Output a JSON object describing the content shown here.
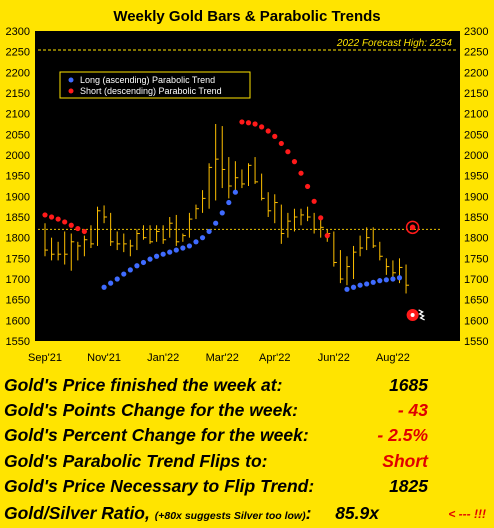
{
  "chart_data": {
    "type": "ohlc_bars_with_parabolic_trend",
    "title": "Weekly Gold Bars & Parabolic Trends",
    "ylim": [
      1550,
      2300
    ],
    "yticks": [
      1550,
      1600,
      1650,
      1700,
      1750,
      1800,
      1850,
      1900,
      1950,
      2000,
      2050,
      2100,
      2150,
      2200,
      2250,
      2300
    ],
    "xtick_labels": [
      "Sep'21",
      "Nov'21",
      "Jan'22",
      "Mar'22",
      "Apr'22",
      "Jun'22",
      "Aug'22"
    ],
    "xtick_weeks": [
      0,
      9,
      18,
      27,
      35,
      44,
      53
    ],
    "week_count": 62,
    "forecast_line": {
      "label": "2022 Forecast High: 2254",
      "value": 2254
    },
    "current_price_line": 1820,
    "legend": [
      {
        "name": "Long (ascending) Parabolic Trend",
        "color": "#3F6BFF"
      },
      {
        "name": "Short (descending) Parabolic Trend",
        "color": "#FF1A1A"
      }
    ],
    "bars": [
      {
        "w": 0,
        "h": 1835,
        "l": 1755,
        "c": 1770
      },
      {
        "w": 1,
        "h": 1800,
        "l": 1745,
        "c": 1760
      },
      {
        "w": 2,
        "h": 1790,
        "l": 1745,
        "c": 1760
      },
      {
        "w": 3,
        "h": 1815,
        "l": 1735,
        "c": 1760
      },
      {
        "w": 4,
        "h": 1810,
        "l": 1720,
        "c": 1790
      },
      {
        "w": 5,
        "h": 1790,
        "l": 1745,
        "c": 1780
      },
      {
        "w": 6,
        "h": 1805,
        "l": 1755,
        "c": 1795
      },
      {
        "w": 7,
        "h": 1830,
        "l": 1775,
        "c": 1785
      },
      {
        "w": 8,
        "h": 1875,
        "l": 1780,
        "c": 1865
      },
      {
        "w": 9,
        "h": 1878,
        "l": 1835,
        "c": 1850
      },
      {
        "w": 10,
        "h": 1860,
        "l": 1780,
        "c": 1790
      },
      {
        "w": 11,
        "h": 1815,
        "l": 1770,
        "c": 1785
      },
      {
        "w": 12,
        "h": 1810,
        "l": 1765,
        "c": 1785
      },
      {
        "w": 13,
        "h": 1795,
        "l": 1755,
        "c": 1780
      },
      {
        "w": 14,
        "h": 1820,
        "l": 1770,
        "c": 1810
      },
      {
        "w": 15,
        "h": 1830,
        "l": 1795,
        "c": 1800
      },
      {
        "w": 16,
        "h": 1830,
        "l": 1785,
        "c": 1790
      },
      {
        "w": 17,
        "h": 1830,
        "l": 1790,
        "c": 1815
      },
      {
        "w": 18,
        "h": 1830,
        "l": 1785,
        "c": 1795
      },
      {
        "w": 19,
        "h": 1850,
        "l": 1800,
        "c": 1835
      },
      {
        "w": 20,
        "h": 1855,
        "l": 1780,
        "c": 1790
      },
      {
        "w": 21,
        "h": 1810,
        "l": 1790,
        "c": 1805
      },
      {
        "w": 22,
        "h": 1860,
        "l": 1800,
        "c": 1845
      },
      {
        "w": 23,
        "h": 1880,
        "l": 1845,
        "c": 1870
      },
      {
        "w": 24,
        "h": 1915,
        "l": 1860,
        "c": 1895
      },
      {
        "w": 25,
        "h": 1980,
        "l": 1870,
        "c": 1970
      },
      {
        "w": 26,
        "h": 2075,
        "l": 1890,
        "c": 1990
      },
      {
        "w": 27,
        "h": 2070,
        "l": 1920,
        "c": 1965
      },
      {
        "w": 28,
        "h": 1995,
        "l": 1895,
        "c": 1925
      },
      {
        "w": 29,
        "h": 1985,
        "l": 1915,
        "c": 1945
      },
      {
        "w": 30,
        "h": 1965,
        "l": 1920,
        "c": 1930
      },
      {
        "w": 31,
        "h": 1980,
        "l": 1925,
        "c": 1975
      },
      {
        "w": 32,
        "h": 1995,
        "l": 1930,
        "c": 1935
      },
      {
        "w": 33,
        "h": 1955,
        "l": 1890,
        "c": 1895
      },
      {
        "w": 34,
        "h": 1910,
        "l": 1850,
        "c": 1865
      },
      {
        "w": 35,
        "h": 1905,
        "l": 1835,
        "c": 1885
      },
      {
        "w": 36,
        "h": 1880,
        "l": 1785,
        "c": 1810
      },
      {
        "w": 37,
        "h": 1860,
        "l": 1800,
        "c": 1840
      },
      {
        "w": 38,
        "h": 1870,
        "l": 1815,
        "c": 1850
      },
      {
        "w": 39,
        "h": 1870,
        "l": 1830,
        "c": 1855
      },
      {
        "w": 40,
        "h": 1875,
        "l": 1840,
        "c": 1850
      },
      {
        "w": 41,
        "h": 1860,
        "l": 1810,
        "c": 1820
      },
      {
        "w": 42,
        "h": 1845,
        "l": 1800,
        "c": 1825
      },
      {
        "w": 43,
        "h": 1820,
        "l": 1790,
        "c": 1810
      },
      {
        "w": 44,
        "h": 1815,
        "l": 1730,
        "c": 1740
      },
      {
        "w": 45,
        "h": 1770,
        "l": 1690,
        "c": 1700
      },
      {
        "w": 46,
        "h": 1755,
        "l": 1685,
        "c": 1730
      },
      {
        "w": 47,
        "h": 1780,
        "l": 1700,
        "c": 1765
      },
      {
        "w": 48,
        "h": 1805,
        "l": 1755,
        "c": 1775
      },
      {
        "w": 49,
        "h": 1825,
        "l": 1770,
        "c": 1800
      },
      {
        "w": 50,
        "h": 1825,
        "l": 1775,
        "c": 1780
      },
      {
        "w": 51,
        "h": 1790,
        "l": 1745,
        "c": 1755
      },
      {
        "w": 52,
        "h": 1750,
        "l": 1710,
        "c": 1730
      },
      {
        "w": 53,
        "h": 1745,
        "l": 1700,
        "c": 1715
      },
      {
        "w": 54,
        "h": 1750,
        "l": 1690,
        "c": 1728
      },
      {
        "w": 55,
        "h": 1735,
        "l": 1665,
        "c": 1685
      }
    ],
    "series": [
      {
        "name": "Short (descending) Parabolic Trend",
        "color": "#FF1A1A",
        "points": [
          [
            0,
            1855
          ],
          [
            1,
            1850
          ],
          [
            2,
            1845
          ],
          [
            3,
            1838
          ],
          [
            4,
            1830
          ],
          [
            5,
            1822
          ],
          [
            6,
            1815
          ],
          [
            30,
            2080
          ],
          [
            31,
            2078
          ],
          [
            32,
            2075
          ],
          [
            33,
            2068
          ],
          [
            34,
            2058
          ],
          [
            35,
            2045
          ],
          [
            36,
            2028
          ],
          [
            37,
            2008
          ],
          [
            38,
            1984
          ],
          [
            39,
            1956
          ],
          [
            40,
            1924
          ],
          [
            41,
            1888
          ],
          [
            42,
            1848
          ],
          [
            43,
            1805
          ]
        ]
      },
      {
        "name": "Long (ascending) Parabolic Trend",
        "color": "#3F6BFF",
        "points": [
          [
            9,
            1680
          ],
          [
            10,
            1690
          ],
          [
            11,
            1700
          ],
          [
            12,
            1712
          ],
          [
            13,
            1722
          ],
          [
            14,
            1732
          ],
          [
            15,
            1740
          ],
          [
            16,
            1748
          ],
          [
            17,
            1755
          ],
          [
            18,
            1760
          ],
          [
            19,
            1765
          ],
          [
            20,
            1770
          ],
          [
            21,
            1775
          ],
          [
            22,
            1780
          ],
          [
            23,
            1790
          ],
          [
            24,
            1800
          ],
          [
            25,
            1815
          ],
          [
            26,
            1835
          ],
          [
            27,
            1860
          ],
          [
            28,
            1885
          ],
          [
            29,
            1910
          ],
          [
            46,
            1675
          ],
          [
            47,
            1680
          ],
          [
            48,
            1685
          ],
          [
            49,
            1688
          ],
          [
            50,
            1692
          ],
          [
            51,
            1696
          ],
          [
            52,
            1698
          ],
          [
            53,
            1700
          ],
          [
            54,
            1703
          ]
        ]
      }
    ],
    "flip_marker": {
      "w": 56,
      "value": 1825
    },
    "short_dot": {
      "w": 56,
      "value": 1613
    }
  },
  "stats": {
    "price_label": "Gold's Price finished the week at:",
    "price_value": "1685",
    "points_label": "Gold's Points Change for the week:",
    "points_value": "- 43",
    "percent_label": "Gold's Percent Change for the week:",
    "percent_value": "- 2.5%",
    "flip_label": "Gold's Parabolic Trend Flips to:",
    "flip_value": "Short",
    "flip_price_label": "Gold's Price Necessary to Flip Trend:",
    "flip_price_value": "1825",
    "ratio_label": "Gold/Silver Ratio,",
    "ratio_note": "(+80x suggests Silver too low)",
    "ratio_colon": ":",
    "ratio_value": "85.9x",
    "ratio_arrow": "< --- !!!"
  }
}
